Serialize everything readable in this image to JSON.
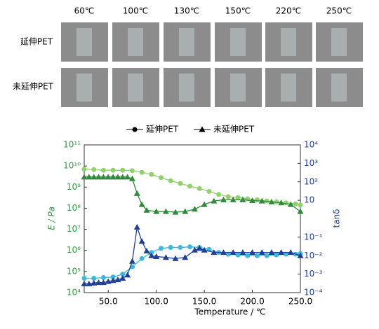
{
  "photos": {
    "temperatures": [
      "60℃",
      "100℃",
      "130℃",
      "150℃",
      "220℃",
      "250℃"
    ],
    "rows": [
      "延伸PET",
      "未延伸PET"
    ]
  },
  "chart_data": {
    "type": "line",
    "xlabel": "Temperature / ℃",
    "ylabel": "E / Pa",
    "y2label": "tanδ",
    "xlim": [
      25,
      250
    ],
    "ylim": [
      10000,
      100000000000
    ],
    "y2lim": [
      0.0001,
      10000
    ],
    "ylog": true,
    "y2log": true,
    "ycolor": "#2e9a3e",
    "y2color": "#1f3f99",
    "legend": "top",
    "xticks": [
      {
        "value": 50,
        "label": "50.0"
      },
      {
        "value": 100,
        "label": "100.0"
      },
      {
        "value": 150,
        "label": "150.0"
      },
      {
        "value": 200,
        "label": "200.0"
      },
      {
        "value": 250,
        "label": "250.0"
      }
    ],
    "yticks": [
      {
        "value": 10000,
        "label": "10⁴"
      },
      {
        "value": 100000,
        "label": "10⁵"
      },
      {
        "value": 1000000,
        "label": "10⁶"
      },
      {
        "value": 10000000,
        "label": "10⁷"
      },
      {
        "value": 100000000,
        "label": "10⁸"
      },
      {
        "value": 1000000000,
        "label": "10⁹"
      },
      {
        "value": 10000000000,
        "label": "10¹⁰"
      },
      {
        "value": 100000000000,
        "label": "10¹¹"
      }
    ],
    "y2ticks": [
      {
        "value": 0.0001,
        "label": "10⁻⁴"
      },
      {
        "value": 0.001,
        "label": "10⁻³"
      },
      {
        "value": 0.01,
        "label": "10⁻²"
      },
      {
        "value": 0.1,
        "label": "10⁻¹"
      },
      10,
      {
        "value": 100,
        "label": "10²"
      },
      {
        "value": 1000,
        "label": "10³"
      },
      {
        "value": 10000,
        "label": "10⁴"
      }
    ],
    "series": [
      {
        "name": "延伸PET",
        "color": "#8fd16a",
        "marker": "circle",
        "x": [
          25,
          35,
          45,
          55,
          65,
          75,
          85,
          95,
          105,
          115,
          125,
          135,
          145,
          155,
          165,
          175,
          185,
          195,
          205,
          215,
          225,
          235,
          245,
          250
        ],
        "values": [
          7100000000.0,
          6800000000.0,
          6300000000.0,
          6300000000.0,
          6300000000.0,
          6000000000.0,
          5000000000.0,
          4000000000.0,
          2800000000.0,
          2000000000.0,
          1500000000.0,
          1100000000.0,
          850000000.0,
          630000000.0,
          450000000.0,
          350000000.0,
          320000000.0,
          280000000.0,
          250000000.0,
          220000000.0,
          200000000.0,
          180000000.0,
          160000000.0,
          140000000.0
        ]
      },
      {
        "name": "未延伸PET",
        "color": "#2e8b3a",
        "marker": "triangle",
        "x": [
          25,
          30,
          35,
          40,
          45,
          50,
          55,
          60,
          65,
          70,
          75,
          80,
          85,
          90,
          100,
          110,
          120,
          130,
          140,
          150,
          160,
          170,
          180,
          190,
          200,
          210,
          220,
          230,
          240,
          250
        ],
        "values": [
          3000000000.0,
          3000000000.0,
          3000000000.0,
          3000000000.0,
          3000000000.0,
          3000000000.0,
          3000000000.0,
          3000000000.0,
          3000000000.0,
          3000000000.0,
          2500000000.0,
          500000000.0,
          150000000.0,
          80000000.0,
          70000000.0,
          70000000.0,
          65000000.0,
          70000000.0,
          90000000.0,
          150000000.0,
          220000000.0,
          250000000.0,
          250000000.0,
          250000000.0,
          230000000.0,
          220000000.0,
          200000000.0,
          180000000.0,
          150000000.0,
          70000000.0
        ]
      },
      {
        "color": "#3bb8e0",
        "marker": "circle",
        "axis": "y2",
        "x": [
          25,
          35,
          45,
          55,
          65,
          75,
          85,
          95,
          105,
          115,
          125,
          135,
          145,
          155,
          165,
          175,
          185,
          195,
          205,
          215,
          225,
          235,
          245,
          250
        ],
        "values": [
          0.0006,
          0.0006,
          0.00065,
          0.0007,
          0.001,
          0.0025,
          0.007,
          0.015,
          0.025,
          0.028,
          0.028,
          0.03,
          0.028,
          0.022,
          0.015,
          0.012,
          0.011,
          0.01,
          0.01,
          0.01,
          0.011,
          0.012,
          0.012,
          0.013
        ]
      },
      {
        "color": "#1f3f99",
        "marker": "triangle",
        "axis": "y2",
        "x": [
          25,
          30,
          35,
          40,
          45,
          50,
          55,
          60,
          65,
          70,
          75,
          80,
          85,
          90,
          95,
          100,
          110,
          120,
          130,
          140,
          145,
          150,
          160,
          170,
          180,
          190,
          200,
          210,
          220,
          230,
          240,
          250
        ],
        "values": [
          0.0003,
          0.0003,
          0.00033,
          0.00035,
          0.00035,
          0.0004,
          0.00045,
          0.0005,
          0.0006,
          0.0009,
          0.005,
          0.35,
          0.06,
          0.018,
          0.01,
          0.009,
          0.008,
          0.007,
          0.008,
          0.02,
          0.025,
          0.02,
          0.015,
          0.015,
          0.015,
          0.015,
          0.015,
          0.015,
          0.015,
          0.015,
          0.015,
          0.01
        ]
      }
    ]
  }
}
